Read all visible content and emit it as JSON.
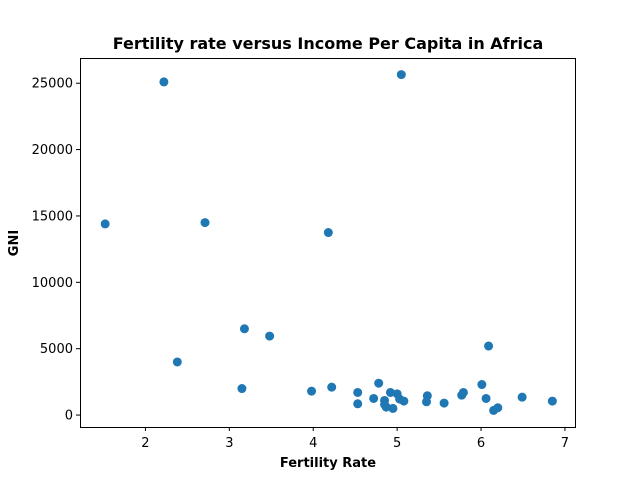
{
  "chart_data": {
    "type": "scatter",
    "title": "Fertility rate versus Income Per Capita in Africa",
    "xlabel": "Fertility Rate",
    "ylabel": "GNI",
    "xlim": [
      1.22,
      7.12
    ],
    "ylim": [
      -900,
      26900
    ],
    "xticks": [
      2,
      3,
      4,
      5,
      6,
      7
    ],
    "yticks": [
      0,
      5000,
      10000,
      15000,
      20000,
      25000
    ],
    "grid": false,
    "color": "#1f77b4",
    "points": [
      {
        "x": 1.52,
        "y": 14400
      },
      {
        "x": 2.22,
        "y": 25100
      },
      {
        "x": 2.38,
        "y": 4000
      },
      {
        "x": 2.71,
        "y": 14500
      },
      {
        "x": 3.15,
        "y": 2000
      },
      {
        "x": 3.18,
        "y": 6500
      },
      {
        "x": 3.48,
        "y": 5950
      },
      {
        "x": 3.98,
        "y": 1800
      },
      {
        "x": 4.18,
        "y": 13750
      },
      {
        "x": 4.22,
        "y": 2100
      },
      {
        "x": 4.53,
        "y": 1700
      },
      {
        "x": 4.53,
        "y": 850
      },
      {
        "x": 4.72,
        "y": 1250
      },
      {
        "x": 4.78,
        "y": 2400
      },
      {
        "x": 4.85,
        "y": 1100
      },
      {
        "x": 4.85,
        "y": 800
      },
      {
        "x": 4.87,
        "y": 600
      },
      {
        "x": 4.92,
        "y": 1700
      },
      {
        "x": 4.95,
        "y": 500
      },
      {
        "x": 5.0,
        "y": 1600
      },
      {
        "x": 5.03,
        "y": 1200
      },
      {
        "x": 5.05,
        "y": 25650
      },
      {
        "x": 5.08,
        "y": 1050
      },
      {
        "x": 5.35,
        "y": 1000
      },
      {
        "x": 5.36,
        "y": 1450
      },
      {
        "x": 5.56,
        "y": 900
      },
      {
        "x": 5.77,
        "y": 1500
      },
      {
        "x": 5.79,
        "y": 1700
      },
      {
        "x": 6.01,
        "y": 2300
      },
      {
        "x": 6.06,
        "y": 1250
      },
      {
        "x": 6.09,
        "y": 5200
      },
      {
        "x": 6.15,
        "y": 350
      },
      {
        "x": 6.2,
        "y": 550
      },
      {
        "x": 6.49,
        "y": 1350
      },
      {
        "x": 6.85,
        "y": 1050
      }
    ]
  }
}
